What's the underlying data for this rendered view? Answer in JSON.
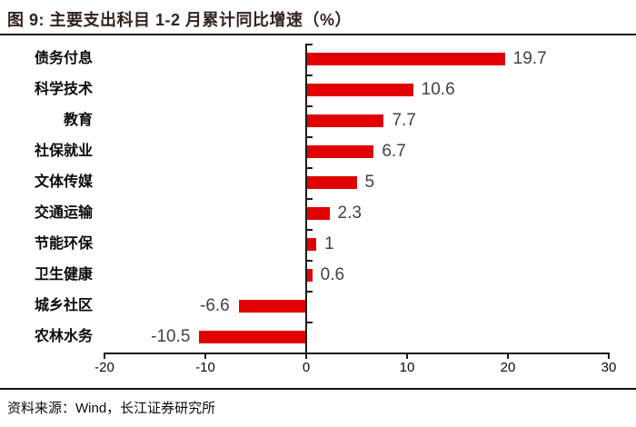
{
  "header": {
    "figure_title": "图 9: 主要支出科目 1-2 月累计同比增速（%）"
  },
  "footer": {
    "source_text": "资料来源：Wind，长江证券研究所"
  },
  "chart_data": {
    "type": "bar",
    "orientation": "horizontal",
    "title": "主要支出科目 1-2 月累计同比增速（%）",
    "categories": [
      "债务付息",
      "科学技术",
      "教育",
      "社保就业",
      "文体传媒",
      "交通运输",
      "节能环保",
      "卫生健康",
      "城乡社区",
      "农林水务"
    ],
    "values": [
      19.7,
      10.6,
      7.7,
      6.7,
      5,
      2.3,
      1,
      0.6,
      -6.6,
      -10.5
    ],
    "value_labels": [
      "19.7",
      "10.6",
      "7.7",
      "6.7",
      "5",
      "2.3",
      "1",
      "0.6",
      "-6.6",
      "-10.5"
    ],
    "xlabel": "",
    "ylabel": "",
    "xlim": [
      -20,
      30
    ],
    "xticks": [
      -20,
      -10,
      0,
      10,
      20,
      30
    ],
    "grid": false,
    "legend": null,
    "colors": {
      "bar": "#e00000",
      "value_label": "#404249",
      "axis": "#1a1a1a",
      "category_label": "#0a0a0a",
      "title": "#33241f"
    }
  }
}
